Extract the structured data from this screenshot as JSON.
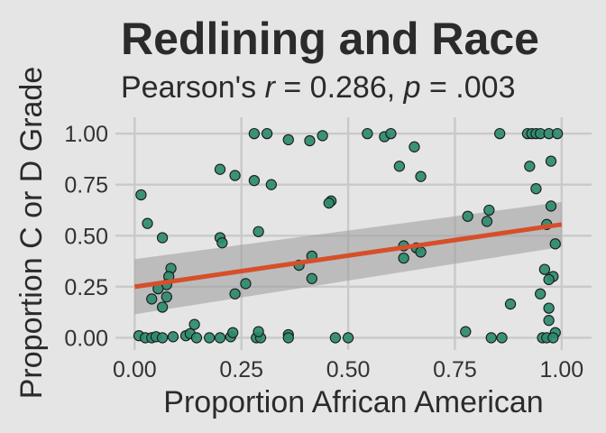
{
  "colors": {
    "background": "#e5e5e5",
    "grid": "#c9c9c9",
    "point_fill": "#2e8b6f",
    "point_stroke": "#1a1a1a",
    "fit_line": "#d64f2a",
    "ci_band": "#9b9b9b",
    "text": "#2b2b2b",
    "axis_text": "#333333"
  },
  "chart_data": {
    "type": "scatter",
    "title": "Redlining and Race",
    "subtitle": {
      "prefix": "Pearson's ",
      "r_symbol": "r",
      "r_value": " = 0.286, ",
      "p_symbol": "p",
      "p_value": " = .003"
    },
    "xlabel": "Proportion African American",
    "ylabel": "Proportion C or D Grade",
    "xlim": [
      -0.045,
      1.07
    ],
    "ylim": [
      -0.06,
      1.08
    ],
    "xticks": [
      0,
      0.25,
      0.5,
      0.75,
      1
    ],
    "xtick_labels": [
      "0.00",
      "0.25",
      "0.50",
      "0.75",
      "1.00"
    ],
    "yticks": [
      0,
      0.25,
      0.5,
      0.75,
      1
    ],
    "ytick_labels": [
      "0.00",
      "0.25",
      "0.50",
      "0.75",
      "1.00"
    ],
    "grid": true,
    "fit": {
      "x": [
        0,
        1
      ],
      "y": [
        0.25,
        0.555
      ],
      "ci_lower": [
        0.115,
        0.445
      ],
      "ci_upper": [
        0.385,
        0.665
      ]
    },
    "points": [
      {
        "x": 0.015,
        "y": 0.7
      },
      {
        "x": 0.03,
        "y": 0.56
      },
      {
        "x": 0.065,
        "y": 0.49
      },
      {
        "x": 0.085,
        "y": 0.34
      },
      {
        "x": 0.08,
        "y": 0.3
      },
      {
        "x": 0.075,
        "y": 0.26
      },
      {
        "x": 0.055,
        "y": 0.24
      },
      {
        "x": 0.04,
        "y": 0.19
      },
      {
        "x": 0.075,
        "y": 0.2
      },
      {
        "x": 0.065,
        "y": 0.15
      },
      {
        "x": 0.01,
        "y": 0.01
      },
      {
        "x": 0.025,
        "y": 0.0
      },
      {
        "x": 0.04,
        "y": 0.0
      },
      {
        "x": 0.05,
        "y": 0.005
      },
      {
        "x": 0.065,
        "y": 0.0
      },
      {
        "x": 0.09,
        "y": 0.005
      },
      {
        "x": 0.12,
        "y": 0.01
      },
      {
        "x": 0.14,
        "y": 0.065
      },
      {
        "x": 0.13,
        "y": 0.02
      },
      {
        "x": 0.145,
        "y": 0.0
      },
      {
        "x": 0.175,
        "y": 0.0
      },
      {
        "x": 0.2,
        "y": 0.0
      },
      {
        "x": 0.225,
        "y": 0.005
      },
      {
        "x": 0.23,
        "y": 0.025
      },
      {
        "x": 0.2,
        "y": 0.825
      },
      {
        "x": 0.235,
        "y": 0.795
      },
      {
        "x": 0.2,
        "y": 0.49
      },
      {
        "x": 0.205,
        "y": 0.465
      },
      {
        "x": 0.235,
        "y": 0.215
      },
      {
        "x": 0.26,
        "y": 0.265
      },
      {
        "x": 0.28,
        "y": 1.0
      },
      {
        "x": 0.31,
        "y": 1.0
      },
      {
        "x": 0.28,
        "y": 0.77
      },
      {
        "x": 0.32,
        "y": 0.75
      },
      {
        "x": 0.29,
        "y": 0.52
      },
      {
        "x": 0.285,
        "y": 0.0
      },
      {
        "x": 0.295,
        "y": 0.0
      },
      {
        "x": 0.29,
        "y": 0.03
      },
      {
        "x": 0.36,
        "y": 0.97
      },
      {
        "x": 0.41,
        "y": 0.965
      },
      {
        "x": 0.44,
        "y": 0.99
      },
      {
        "x": 0.385,
        "y": 0.355
      },
      {
        "x": 0.415,
        "y": 0.4
      },
      {
        "x": 0.415,
        "y": 0.29
      },
      {
        "x": 0.36,
        "y": 0.015
      },
      {
        "x": 0.36,
        "y": 0.0
      },
      {
        "x": 0.46,
        "y": 0.67
      },
      {
        "x": 0.455,
        "y": 0.66
      },
      {
        "x": 0.47,
        "y": 0.0
      },
      {
        "x": 0.5,
        "y": 0.0
      },
      {
        "x": 0.545,
        "y": 1.0
      },
      {
        "x": 0.585,
        "y": 0.985
      },
      {
        "x": 0.6,
        "y": 1.0
      },
      {
        "x": 0.655,
        "y": 0.935
      },
      {
        "x": 0.62,
        "y": 0.84
      },
      {
        "x": 0.67,
        "y": 0.79
      },
      {
        "x": 0.63,
        "y": 0.45
      },
      {
        "x": 0.66,
        "y": 0.44
      },
      {
        "x": 0.63,
        "y": 0.39
      },
      {
        "x": 0.67,
        "y": 0.42
      },
      {
        "x": 0.78,
        "y": 0.595
      },
      {
        "x": 0.825,
        "y": 0.57
      },
      {
        "x": 0.83,
        "y": 0.625
      },
      {
        "x": 0.775,
        "y": 0.03
      },
      {
        "x": 0.835,
        "y": 0.0
      },
      {
        "x": 0.86,
        "y": 0.0
      },
      {
        "x": 0.855,
        "y": 1.0
      },
      {
        "x": 0.92,
        "y": 1.0
      },
      {
        "x": 0.93,
        "y": 1.0
      },
      {
        "x": 0.94,
        "y": 1.0
      },
      {
        "x": 0.95,
        "y": 1.0
      },
      {
        "x": 0.97,
        "y": 1.0
      },
      {
        "x": 0.99,
        "y": 1.0
      },
      {
        "x": 0.925,
        "y": 0.84
      },
      {
        "x": 0.975,
        "y": 0.865
      },
      {
        "x": 0.94,
        "y": 0.73
      },
      {
        "x": 0.975,
        "y": 0.645
      },
      {
        "x": 0.965,
        "y": 0.555
      },
      {
        "x": 0.985,
        "y": 0.46
      },
      {
        "x": 0.96,
        "y": 0.335
      },
      {
        "x": 0.98,
        "y": 0.3
      },
      {
        "x": 0.97,
        "y": 0.285
      },
      {
        "x": 0.95,
        "y": 0.215
      },
      {
        "x": 0.88,
        "y": 0.165
      },
      {
        "x": 0.97,
        "y": 0.145
      },
      {
        "x": 0.97,
        "y": 0.085
      },
      {
        "x": 0.985,
        "y": 0.025
      },
      {
        "x": 0.955,
        "y": 0.0
      },
      {
        "x": 0.965,
        "y": 0.0
      },
      {
        "x": 0.98,
        "y": 0.0
      }
    ]
  }
}
